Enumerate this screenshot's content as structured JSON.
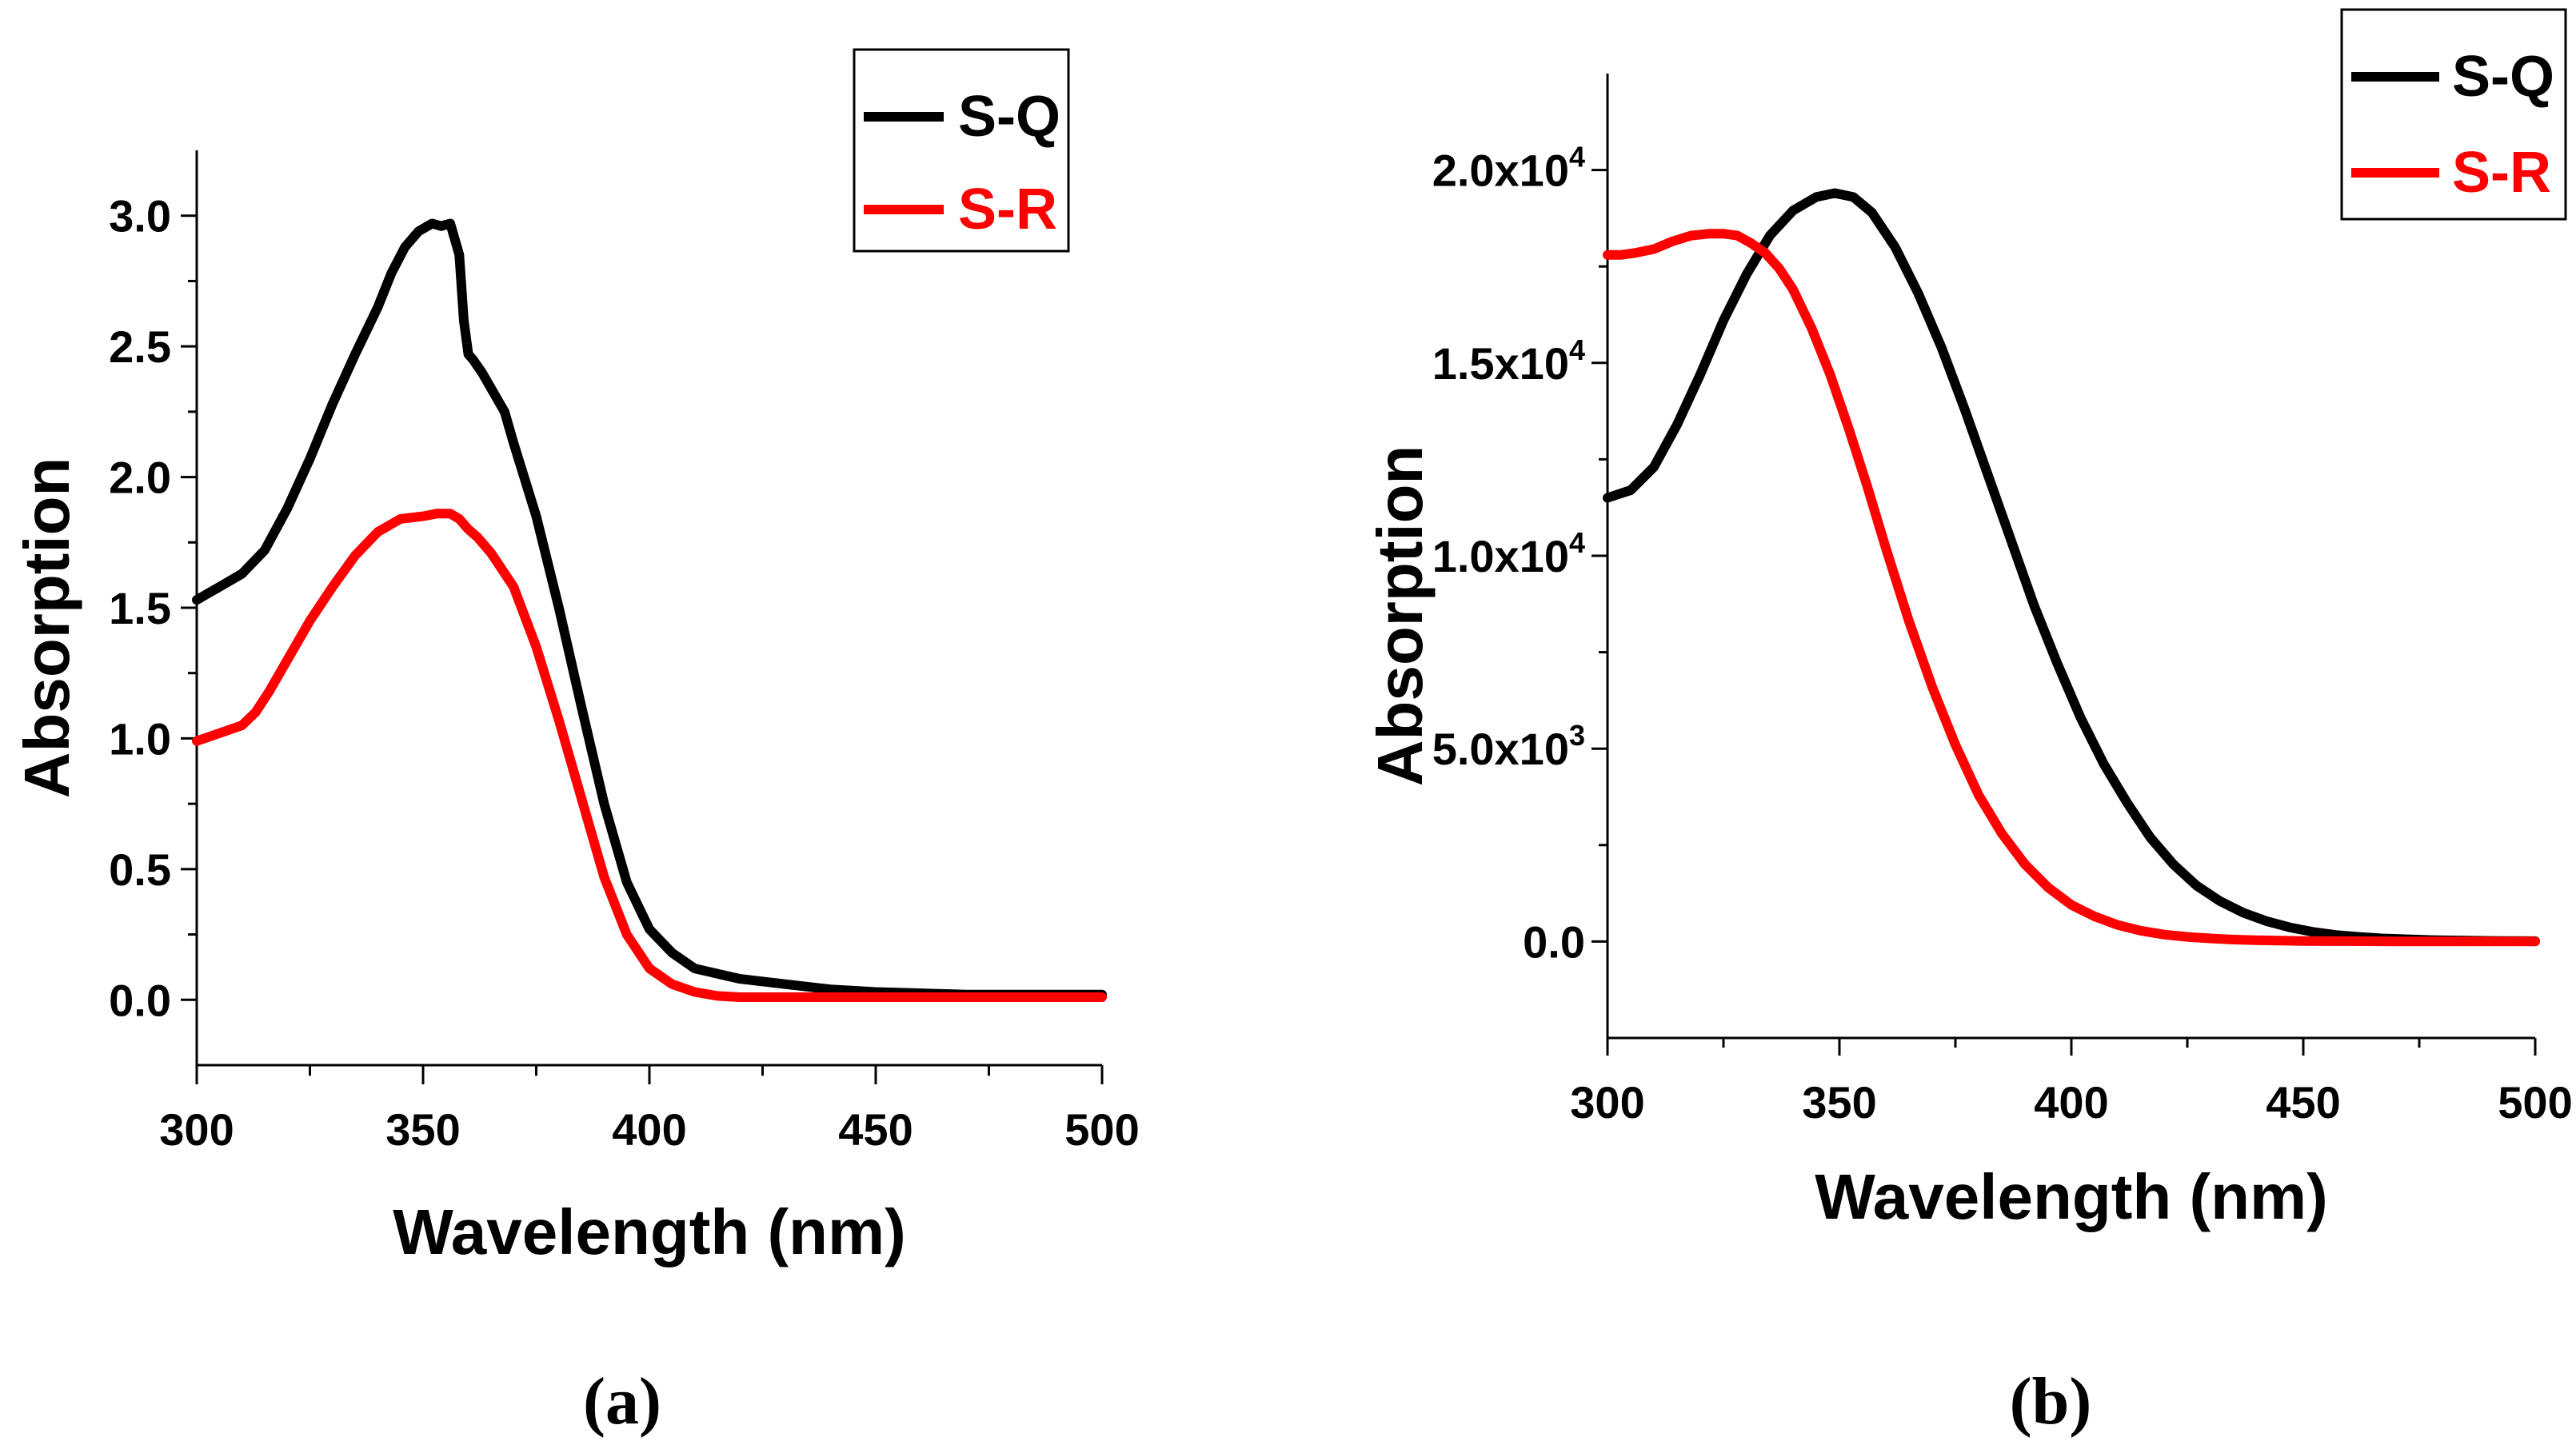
{
  "chart_data": [
    {
      "type": "line",
      "xlabel": "Wavelength (nm)",
      "ylabel": "Absorption",
      "xlim": [
        300,
        500
      ],
      "ylim": [
        -0.25,
        3.25
      ],
      "xticks": [
        "300",
        "350",
        "400",
        "450",
        "500"
      ],
      "yticks": [
        {
          "value": 0.0,
          "label": "0.0"
        },
        {
          "value": 0.5,
          "label": "0.5"
        },
        {
          "value": 1.0,
          "label": "1.0"
        },
        {
          "value": 1.5,
          "label": "1.5"
        },
        {
          "value": 2.0,
          "label": "2.0"
        },
        {
          "value": 2.5,
          "label": "2.5"
        },
        {
          "value": 3.0,
          "label": "3.0"
        }
      ],
      "legend_position": "top-right",
      "panel_label": "(a)",
      "series": [
        {
          "name": "S-Q",
          "color": "#000000",
          "x": [
            300,
            305,
            310,
            315,
            320,
            325,
            330,
            335,
            340,
            343,
            346,
            349,
            352,
            354,
            356,
            358,
            359,
            360,
            361,
            363,
            365,
            368,
            370,
            375,
            380,
            385,
            390,
            395,
            400,
            405,
            410,
            420,
            430,
            440,
            450,
            460,
            470,
            480,
            490,
            500
          ],
          "y": [
            1.53,
            1.58,
            1.63,
            1.72,
            1.88,
            2.07,
            2.28,
            2.47,
            2.65,
            2.78,
            2.88,
            2.94,
            2.97,
            2.96,
            2.97,
            2.85,
            2.6,
            2.47,
            2.45,
            2.4,
            2.34,
            2.25,
            2.13,
            1.85,
            1.5,
            1.12,
            0.75,
            0.45,
            0.27,
            0.18,
            0.12,
            0.08,
            0.06,
            0.04,
            0.03,
            0.025,
            0.02,
            0.02,
            0.02,
            0.02
          ]
        },
        {
          "name": "S-R",
          "color": "#ff0000",
          "x": [
            300,
            305,
            310,
            313,
            316,
            320,
            325,
            330,
            335,
            340,
            345,
            350,
            353,
            356,
            358,
            360,
            362,
            365,
            370,
            375,
            380,
            385,
            390,
            395,
            400,
            405,
            410,
            415,
            420,
            430,
            440,
            450,
            460,
            470,
            480,
            490,
            500
          ],
          "y": [
            0.99,
            1.02,
            1.05,
            1.1,
            1.18,
            1.3,
            1.45,
            1.58,
            1.7,
            1.79,
            1.84,
            1.85,
            1.86,
            1.86,
            1.84,
            1.8,
            1.77,
            1.71,
            1.58,
            1.35,
            1.07,
            0.77,
            0.47,
            0.25,
            0.12,
            0.06,
            0.03,
            0.015,
            0.01,
            0.01,
            0.01,
            0.01,
            0.01,
            0.01,
            0.01,
            0.01,
            0.01
          ]
        }
      ]
    },
    {
      "type": "line",
      "xlabel": "Wavelength (nm)",
      "ylabel": "Absorption",
      "xlim": [
        300,
        500
      ],
      "ylim": [
        -2500,
        22500
      ],
      "xticks": [
        "300",
        "350",
        "400",
        "450",
        "500"
      ],
      "yticks": [
        {
          "value": 0,
          "label": "0.0",
          "exp": ""
        },
        {
          "value": 5000,
          "label": "5.0x10",
          "exp": "3"
        },
        {
          "value": 10000,
          "label": "1.0x10",
          "exp": "4"
        },
        {
          "value": 15000,
          "label": "1.5x10",
          "exp": "4"
        },
        {
          "value": 20000,
          "label": "2.0x10",
          "exp": "4"
        }
      ],
      "legend_position": "top-right",
      "panel_label": "(b)",
      "series": [
        {
          "name": "S-Q",
          "color": "#000000",
          "x": [
            300,
            305,
            310,
            315,
            320,
            325,
            330,
            335,
            340,
            345,
            349,
            353,
            357,
            362,
            367,
            372,
            377,
            382,
            387,
            392,
            397,
            402,
            407,
            412,
            417,
            422,
            427,
            432,
            437,
            442,
            447,
            452,
            457,
            462,
            467,
            472,
            477,
            482,
            487,
            492,
            500
          ],
          "y": [
            11500,
            11700,
            12300,
            13400,
            14700,
            16100,
            17300,
            18300,
            18950,
            19300,
            19400,
            19300,
            18900,
            18000,
            16800,
            15400,
            13800,
            12100,
            10400,
            8700,
            7200,
            5800,
            4600,
            3600,
            2700,
            2000,
            1450,
            1050,
            750,
            530,
            370,
            250,
            170,
            120,
            80,
            60,
            40,
            30,
            20,
            15,
            10
          ]
        },
        {
          "name": "S-R",
          "color": "#ff0000",
          "x": [
            300,
            303,
            306,
            310,
            314,
            318,
            322,
            325,
            328,
            331,
            334,
            337,
            340,
            344,
            348,
            352,
            356,
            360,
            365,
            370,
            375,
            380,
            385,
            390,
            395,
            400,
            405,
            410,
            415,
            420,
            425,
            430,
            435,
            440,
            445,
            450,
            460,
            470,
            480,
            490,
            500
          ],
          "y": [
            17800,
            17800,
            17850,
            17950,
            18150,
            18300,
            18350,
            18350,
            18300,
            18100,
            17850,
            17450,
            16900,
            15900,
            14700,
            13300,
            11800,
            10200,
            8300,
            6600,
            5100,
            3800,
            2800,
            2000,
            1400,
            950,
            650,
            430,
            280,
            180,
            120,
            80,
            50,
            35,
            25,
            15,
            10,
            5,
            5,
            5,
            5
          ]
        }
      ]
    }
  ]
}
